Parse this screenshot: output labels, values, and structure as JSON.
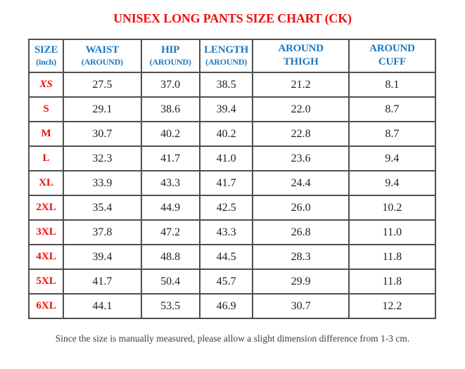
{
  "title": "UNISEX LONG PANTS SIZE CHART (CK)",
  "footnote": "Since the size is manually measured, please allow a slight dimension difference from 1-3 cm.",
  "colors": {
    "title_red": "#f20c0c",
    "size_label_red": "#f20c0c",
    "header_blue": "#1c78c0",
    "value_text": "#1f1f1f",
    "border_gray": "#4f4f4f",
    "footnote_gray": "#3d3d3d",
    "background": "#ffffff"
  },
  "table": {
    "headers": [
      {
        "line1": "SIZE",
        "line2": "(inch)"
      },
      {
        "line1": "WAIST",
        "line2": "(AROUND)"
      },
      {
        "line1": "HIP",
        "line2": "(AROUND)"
      },
      {
        "line1": "LENGTH",
        "line2": "(AROUND)"
      },
      {
        "line1": "AROUND",
        "line2": "THIGH"
      },
      {
        "line1": "AROUND",
        "line2": "CUFF"
      }
    ],
    "rows": [
      [
        "XS",
        "27.5",
        "37.0",
        "38.5",
        "21.2",
        "8.1"
      ],
      [
        "S",
        "29.1",
        "38.6",
        "39.4",
        "22.0",
        "8.7"
      ],
      [
        "M",
        "30.7",
        "40.2",
        "40.2",
        "22.8",
        "8.7"
      ],
      [
        "L",
        "32.3",
        "41.7",
        "41.0",
        "23.6",
        "9.4"
      ],
      [
        "XL",
        "33.9",
        "43.3",
        "41.7",
        "24.4",
        "9.4"
      ],
      [
        "2XL",
        "35.4",
        "44.9",
        "42.5",
        "26.0",
        "10.2"
      ],
      [
        "3XL",
        "37.8",
        "47.2",
        "43.3",
        "26.8",
        "11.0"
      ],
      [
        "4XL",
        "39.4",
        "48.8",
        "44.5",
        "28.3",
        "11.8"
      ],
      [
        "5XL",
        "41.7",
        "50.4",
        "45.7",
        "29.9",
        "11.8"
      ],
      [
        "6XL",
        "44.1",
        "53.5",
        "46.9",
        "30.7",
        "12.2"
      ]
    ]
  },
  "chart_data": {
    "type": "table",
    "title": "UNISEX LONG PANTS SIZE CHART (CK)",
    "columns": [
      "SIZE (inch)",
      "WAIST (AROUND)",
      "HIP (AROUND)",
      "LENGTH (AROUND)",
      "AROUND THIGH",
      "AROUND CUFF"
    ],
    "rows": [
      [
        "XS",
        27.5,
        37.0,
        38.5,
        21.2,
        8.1
      ],
      [
        "S",
        29.1,
        38.6,
        39.4,
        22.0,
        8.7
      ],
      [
        "M",
        30.7,
        40.2,
        40.2,
        22.8,
        8.7
      ],
      [
        "L",
        32.3,
        41.7,
        41.0,
        23.6,
        9.4
      ],
      [
        "XL",
        33.9,
        43.3,
        41.7,
        24.4,
        9.4
      ],
      [
        "2XL",
        35.4,
        44.9,
        42.5,
        26.0,
        10.2
      ],
      [
        "3XL",
        37.8,
        47.2,
        43.3,
        26.8,
        11.0
      ],
      [
        "4XL",
        39.4,
        48.8,
        44.5,
        28.3,
        11.8
      ],
      [
        "5XL",
        41.7,
        50.4,
        45.7,
        29.9,
        11.8
      ],
      [
        "6XL",
        44.1,
        53.5,
        46.9,
        30.7,
        12.2
      ]
    ]
  }
}
